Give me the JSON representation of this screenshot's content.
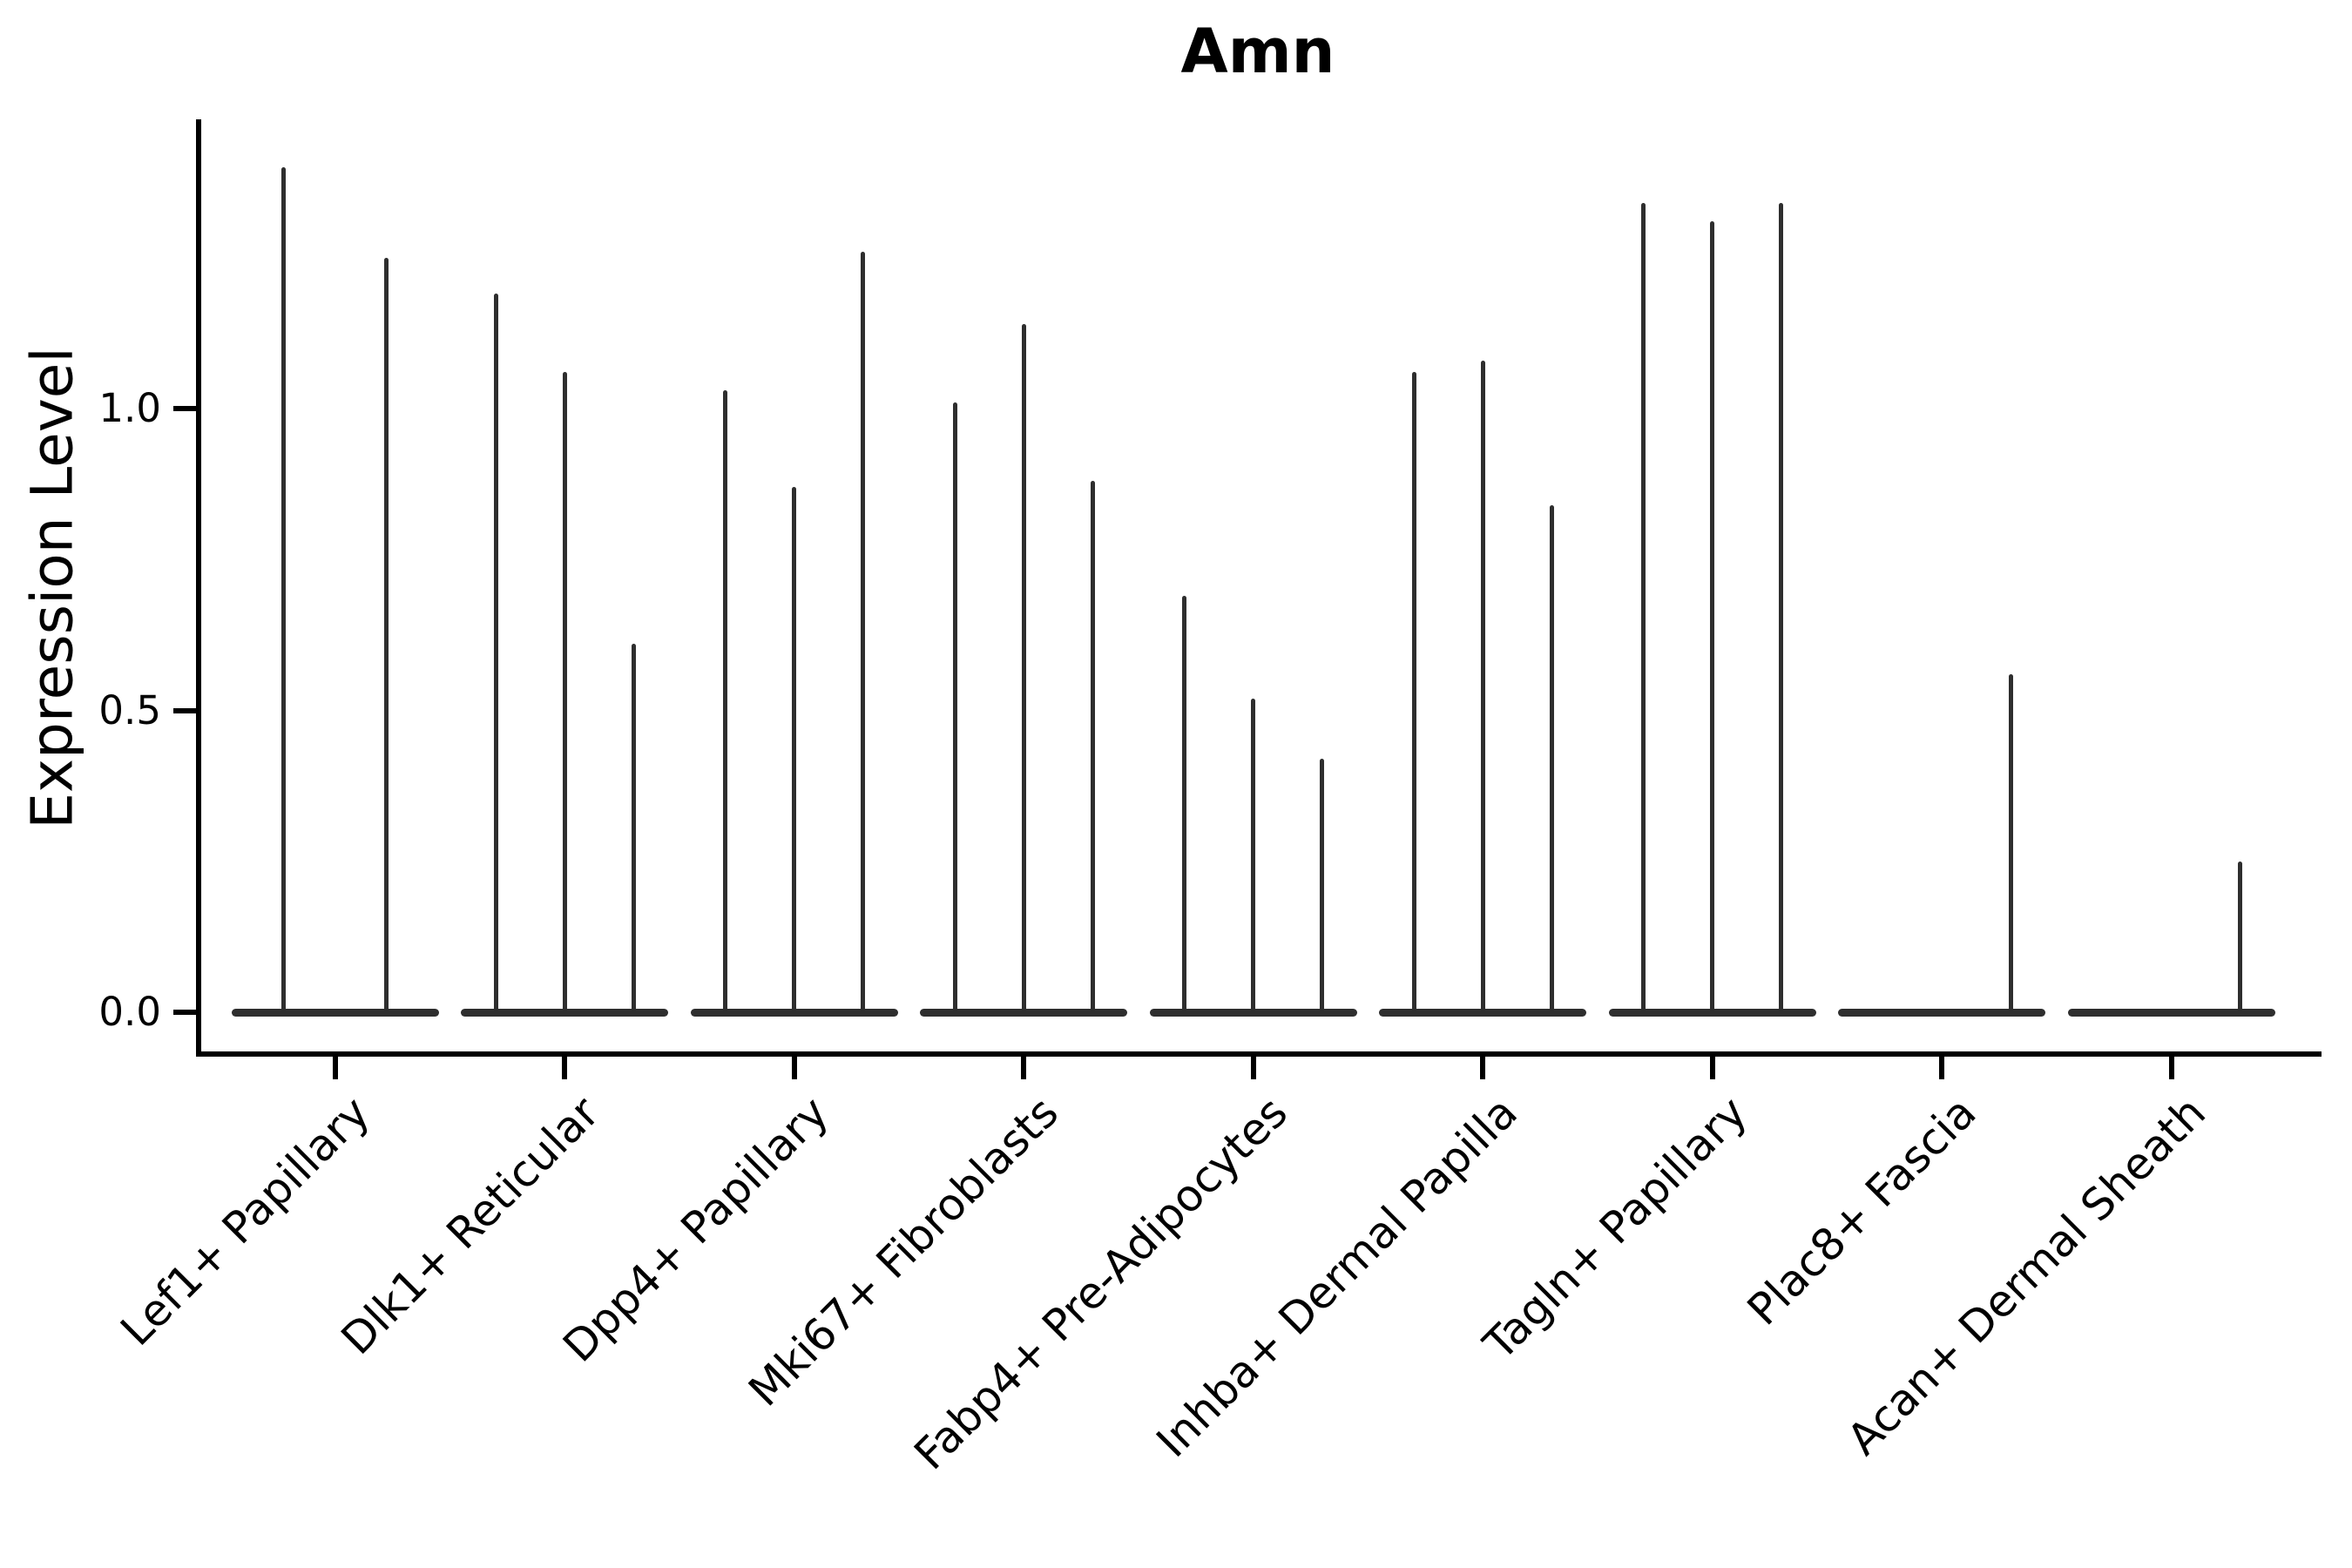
{
  "chart_data": {
    "type": "violin",
    "title": "Amn",
    "ylabel": "Expression Level",
    "xlabel": "",
    "ylim": [
      0,
      1.45
    ],
    "yticks": [
      {
        "value": 0.0,
        "label": "0.0"
      },
      {
        "value": 0.5,
        "label": "0.5"
      },
      {
        "value": 1.0,
        "label": "1.0"
      }
    ],
    "grid": false,
    "legend": "none",
    "description": "Stacked-style violin plot of Amn expression; each category shows 2-3 very thin violins (flat base at 0 with a narrow spike up to the max expression value).",
    "categories": [
      {
        "label": "Lef1+ Papillary",
        "violin_max_values": [
          1.4,
          1.25
        ]
      },
      {
        "label": "Dlk1+ Reticular",
        "violin_max_values": [
          1.19,
          1.06,
          0.61
        ]
      },
      {
        "label": "Dpp4+ Papillary",
        "violin_max_values": [
          1.03,
          0.87,
          1.26
        ]
      },
      {
        "label": "Mki67+ Fibroblasts",
        "violin_max_values": [
          1.01,
          1.14,
          0.88
        ]
      },
      {
        "label": "Fabp4+ Pre-Adipocytes",
        "violin_max_values": [
          0.69,
          0.52,
          0.42
        ]
      },
      {
        "label": "Inhba+ Dermal Papilla",
        "violin_max_values": [
          1.06,
          1.08,
          0.84
        ]
      },
      {
        "label": "Tagln+ Papillary",
        "violin_max_values": [
          1.34,
          1.31,
          1.34
        ]
      },
      {
        "label": "Plac8+ Fascia",
        "violin_max_values": [
          0.0,
          0.0,
          0.56
        ]
      },
      {
        "label": "Acan+ Dermal Sheath",
        "violin_max_values": [
          0.0,
          0.0,
          0.25
        ]
      }
    ],
    "colors": {
      "violin": "#2e2e2e",
      "axis": "#000000",
      "text": "#000000",
      "background": "#ffffff"
    }
  }
}
